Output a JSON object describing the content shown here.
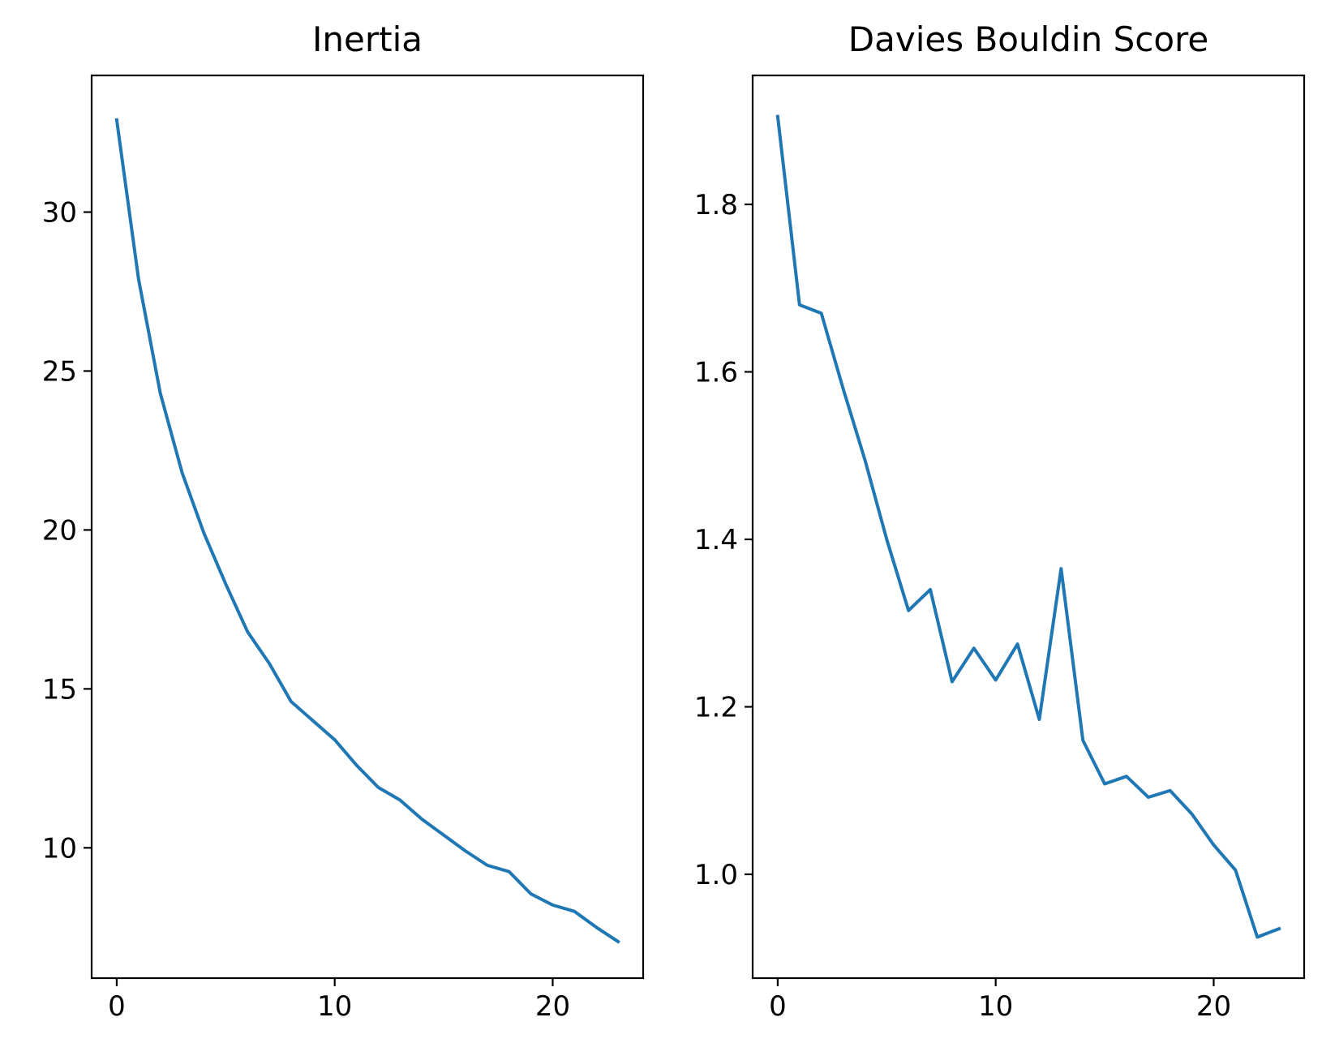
{
  "chart_data": [
    {
      "type": "line",
      "title": "Inertia",
      "xlabel": "",
      "ylabel": "",
      "x": [
        0,
        1,
        2,
        3,
        4,
        5,
        6,
        7,
        8,
        9,
        10,
        11,
        12,
        13,
        14,
        15,
        16,
        17,
        18,
        19,
        20,
        21,
        22,
        23
      ],
      "series": [
        {
          "values": [
            32.9,
            27.9,
            24.3,
            21.8,
            19.9,
            18.3,
            16.8,
            15.8,
            14.6,
            14.0,
            13.4,
            12.6,
            11.9,
            11.5,
            10.9,
            10.4,
            9.9,
            9.45,
            9.25,
            8.55,
            8.2,
            8.0,
            7.5,
            7.05
          ],
          "color": "#1f77b4"
        }
      ],
      "xlim": [
        -1.15,
        24.15
      ],
      "ylim": [
        5.9,
        34.3
      ],
      "xticks": [
        0,
        10,
        20
      ],
      "yticks": [
        10,
        15,
        20,
        25,
        30
      ],
      "grid": false
    },
    {
      "type": "line",
      "title": "Davies Bouldin Score",
      "xlabel": "",
      "ylabel": "",
      "x": [
        0,
        1,
        2,
        3,
        4,
        5,
        6,
        7,
        8,
        9,
        10,
        11,
        12,
        13,
        14,
        15,
        16,
        17,
        18,
        19,
        20,
        21,
        22,
        23
      ],
      "series": [
        {
          "values": [
            1.905,
            1.68,
            1.67,
            1.58,
            1.495,
            1.4,
            1.315,
            1.34,
            1.23,
            1.27,
            1.232,
            1.275,
            1.185,
            1.365,
            1.16,
            1.108,
            1.117,
            1.092,
            1.1,
            1.072,
            1.035,
            1.005,
            0.925,
            0.935
          ],
          "color": "#1f77b4"
        }
      ],
      "xlim": [
        -1.15,
        24.15
      ],
      "ylim": [
        0.876,
        1.954
      ],
      "xticks": [
        0,
        10,
        20
      ],
      "yticks": [
        1.0,
        1.2,
        1.4,
        1.6,
        1.8
      ],
      "yticklabels": [
        "1.0",
        "1.2",
        "1.4",
        "1.6",
        "1.8"
      ],
      "grid": false
    }
  ]
}
